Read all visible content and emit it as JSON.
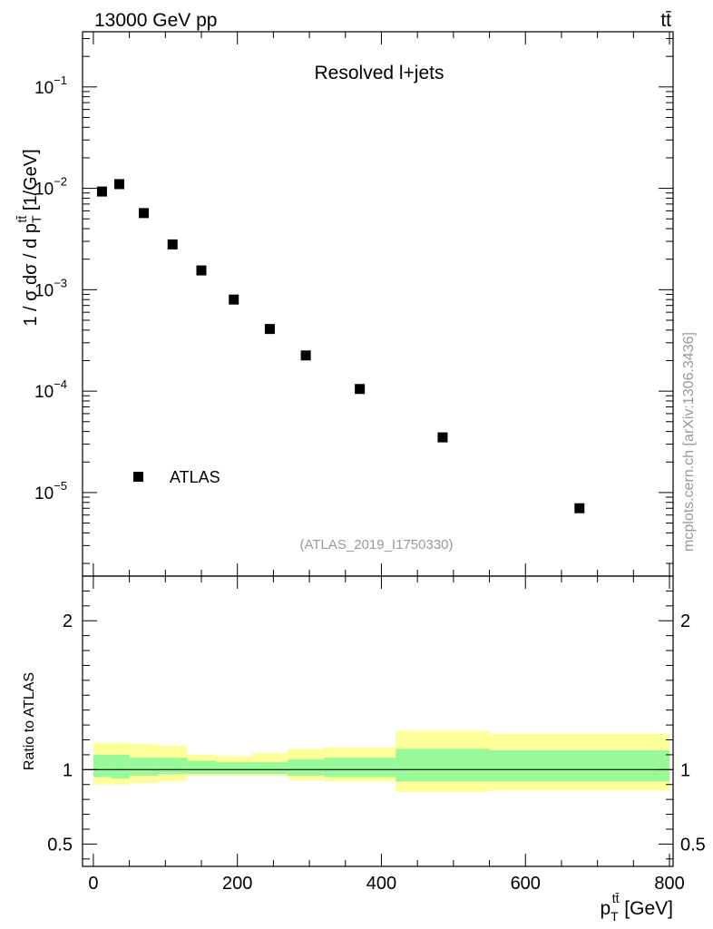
{
  "header": {
    "energy_label": "13000 GeV pp",
    "process_label": "tt̄"
  },
  "watermark": "mcplots.cern.ch [arXiv:1306.3436]",
  "analysis_id": "(ATLAS_2019_I1750330)",
  "chart_data": [
    {
      "type": "scatter",
      "title": "Resolved l+jets",
      "ylabel": "1 / σ dσ / d p_T^{tt̄} [1/GeV]",
      "ylabel_parts": {
        "main": "1 / σ dσ / d p",
        "sub": "T",
        "sup": "tt̄",
        "unit": " [1/GeV]"
      },
      "yscale": "log",
      "ylim": [
        1.5e-06,
        0.35
      ],
      "xlim": [
        -15,
        805
      ],
      "yticks": [
        {
          "value": 0.1,
          "base": "10",
          "exp": "−1"
        },
        {
          "value": 0.01,
          "base": "10",
          "exp": "−2"
        },
        {
          "value": 0.001,
          "base": "10",
          "exp": "−3"
        },
        {
          "value": 0.0001,
          "base": "10",
          "exp": "−4"
        },
        {
          "value": 1e-05,
          "base": "10",
          "exp": "−5"
        }
      ],
      "legend": {
        "position": "bottom-left",
        "entries": [
          "ATLAS"
        ]
      },
      "series": [
        {
          "name": "ATLAS",
          "x": [
            12,
            36,
            70,
            110,
            150,
            195,
            245,
            295,
            370,
            485,
            675
          ],
          "y": [
            0.0093,
            0.011,
            0.0057,
            0.0028,
            0.00155,
            0.0008,
            0.00041,
            0.000225,
            0.000105,
            3.5e-05,
            7e-06
          ]
        }
      ]
    },
    {
      "type": "area",
      "ylabel": "Ratio to ATLAS",
      "xlabel": "p_T^{tt̄} [GeV]",
      "xlabel_parts": {
        "main": "p",
        "sub": "T",
        "sup": "tt̄",
        "unit": " [GeV]"
      },
      "xlim": [
        -15,
        805
      ],
      "ylim": [
        0.35,
        2.3
      ],
      "xticks": [
        0,
        200,
        400,
        600,
        800
      ],
      "xtick_labels": [
        "0",
        "200",
        "400",
        "600",
        "800"
      ],
      "yticks": [
        0.5,
        1,
        2
      ],
      "ytick_labels": [
        "0.5",
        "1",
        "2"
      ],
      "reference_line": 1,
      "bin_edges": [
        0,
        25,
        50,
        90,
        130,
        170,
        220,
        270,
        320,
        420,
        550,
        800
      ],
      "bands": [
        {
          "color": "#ffff99",
          "lower": [
            0.9,
            0.9,
            0.91,
            0.92,
            0.96,
            0.96,
            0.96,
            0.93,
            0.92,
            0.85,
            0.86
          ],
          "upper": [
            1.18,
            1.18,
            1.17,
            1.16,
            1.1,
            1.09,
            1.11,
            1.14,
            1.15,
            1.26,
            1.24
          ]
        },
        {
          "color": "#98f998",
          "lower": [
            0.95,
            0.94,
            0.96,
            0.97,
            0.97,
            0.97,
            0.97,
            0.96,
            0.95,
            0.92,
            0.92
          ],
          "upper": [
            1.1,
            1.1,
            1.08,
            1.08,
            1.06,
            1.05,
            1.05,
            1.07,
            1.08,
            1.14,
            1.13
          ]
        }
      ]
    }
  ]
}
